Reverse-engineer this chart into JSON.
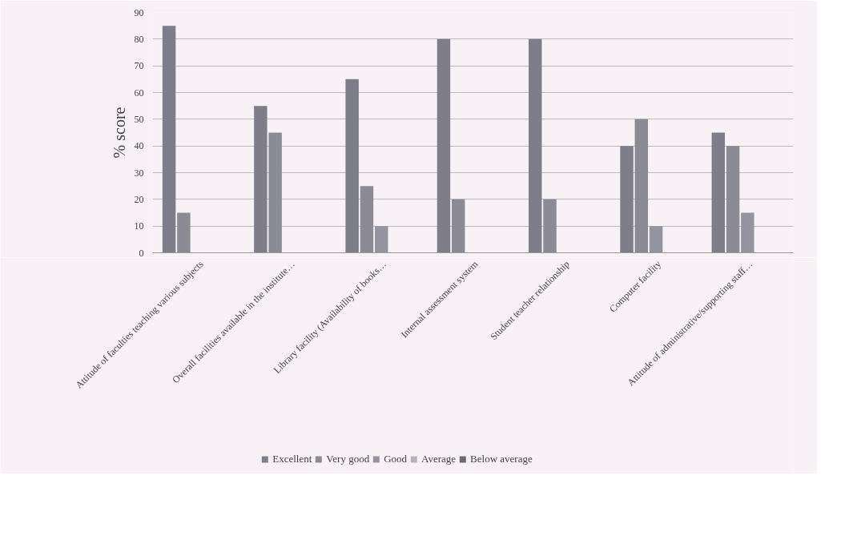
{
  "chart_data": {
    "type": "bar",
    "ylabel": "% score",
    "categories": [
      "Attitude of faculties teaching various subjects",
      "Overall facilities available in the institute…",
      "Library facility (Availability of books…",
      "Internal assessment system",
      "Student teacher relationship",
      "Computer facility",
      "Attitude of administrative/supporting staff…"
    ],
    "series": [
      {
        "name": "Excellent",
        "color": "#7e7e8a",
        "values": [
          85,
          55,
          65,
          80,
          80,
          40,
          45
        ]
      },
      {
        "name": "Very good",
        "color": "#8b8b96",
        "values": [
          15,
          45,
          25,
          20,
          20,
          50,
          40
        ]
      },
      {
        "name": "Good",
        "color": "#9494a0",
        "values": [
          0,
          0,
          10,
          0,
          0,
          10,
          15
        ]
      },
      {
        "name": "Average",
        "color": "#b4b4c0",
        "values": [
          0,
          0,
          0,
          0,
          0,
          0,
          0
        ]
      },
      {
        "name": "Below average",
        "color": "#6a6a76",
        "values": [
          0,
          0,
          0,
          0,
          0,
          0,
          0
        ]
      }
    ],
    "ylim": [
      0,
      90
    ],
    "yticks": [
      0,
      10,
      20,
      30,
      40,
      50,
      60,
      70,
      80,
      90
    ],
    "grid": "y",
    "legend": "bottom"
  }
}
